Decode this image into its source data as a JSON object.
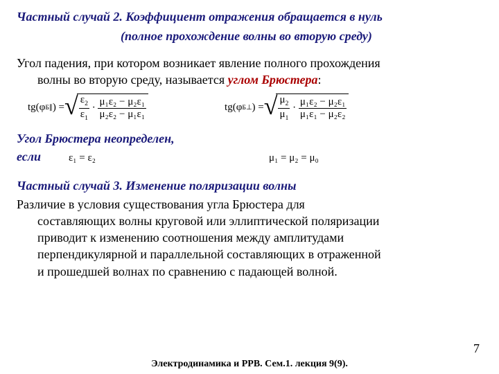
{
  "heading": {
    "line1": "Частный случай 2. Коэффициент отражения обращается в нуль",
    "line2": "(полное прохождение волны во вторую среду)"
  },
  "intro": {
    "line1": "Угол падения, при котором возникает явление полного прохождения",
    "line2": "волны во вторую среду, называется ",
    "highlight": "углом Брюстера",
    "colon": ":"
  },
  "formula1": {
    "lhs": "tg(φ",
    "sub": "Б∥",
    "rhs": ") = ",
    "frac1_num": "ε",
    "frac1_num_sub": "2",
    "frac1_den": "ε",
    "frac1_den_sub": "1",
    "dot": "·",
    "num": "μ₁ε₂ − μ₂ε₁",
    "den": "μ₂ε₂ − μ₁ε₁"
  },
  "formula2": {
    "lhs": "tg(φ",
    "sub": "Б⊥",
    "rhs": ") = ",
    "frac1_num": "μ",
    "frac1_num_sub": "2",
    "frac1_den": "μ",
    "frac1_den_sub": "1",
    "dot": "·",
    "num": "μ₁ε₂ − μ₂ε₁",
    "den": "μ₁ε₁ − μ₂ε₂"
  },
  "undef": "Угол Брюстера неопределен,",
  "esli": "если",
  "cond1": "ε₁ = ε₂",
  "cond2": "μ₁ = μ₂ = μ₀",
  "heading3": "Частный случай 3. Изменение поляризации волны",
  "body3": {
    "l1": "Различие в условия существования угла Брюстера для",
    "l2": "составляющих волны круговой или эллиптической поляризации",
    "l3": "приводит к изменению соотношения между амплитудами",
    "l4": "перпендикулярной и параллельной составляющих в отраженной",
    "l5": "и прошедшей волнах по сравнению с падающей волной."
  },
  "pagenum": "7",
  "footer": "Электродинамика и РРВ. Сем.1. лекция 9(9)."
}
